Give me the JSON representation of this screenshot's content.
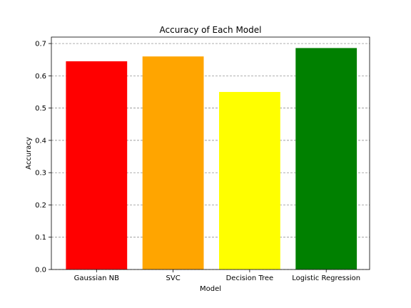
{
  "chart_data": {
    "type": "bar",
    "title": "Accuracy of Each Model",
    "xlabel": "Model",
    "ylabel": "Accuracy",
    "categories": [
      "Gaussian NB",
      "SVC",
      "Decision Tree",
      "Logistic Regression"
    ],
    "values": [
      0.645,
      0.66,
      0.55,
      0.686
    ],
    "colors": [
      "#ff0000",
      "#ffa500",
      "#ffff00",
      "#008000"
    ],
    "ylim": [
      0,
      0.72
    ],
    "yticks": [
      0.0,
      0.1,
      0.2,
      0.3,
      0.4,
      0.5,
      0.6,
      0.7
    ],
    "ytick_labels": [
      "0.0",
      "0.1",
      "0.2",
      "0.3",
      "0.4",
      "0.5",
      "0.6",
      "0.7"
    ],
    "grid": "y-dashed"
  }
}
